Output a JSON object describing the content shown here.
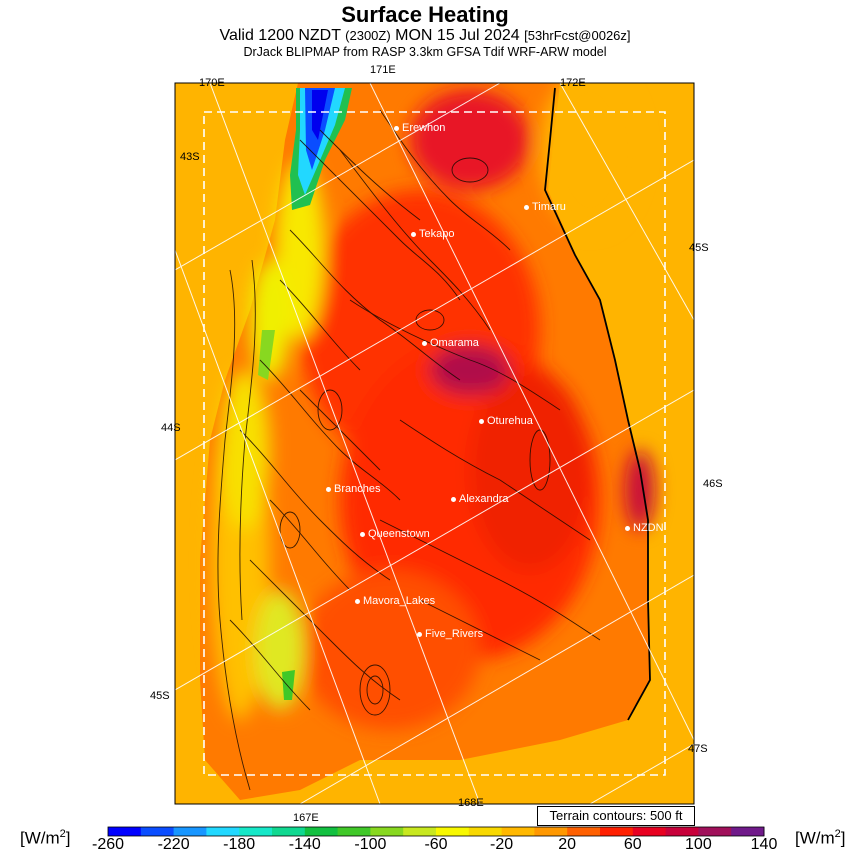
{
  "header": {
    "title": "Surface Heating",
    "valid_prefix": "Valid 1200 NZDT",
    "valid_utc": "(2300Z)",
    "valid_date": "MON 15 Jul 2024",
    "forecast": "[53hrFcst@0026z]",
    "model_line": "DrJack BLIPMAP from RASP 3.3km GFSA Tdif WRF-ARW model"
  },
  "grid_labels": {
    "top": [
      "170E",
      "171E",
      "172E"
    ],
    "left": [
      "43S",
      "44S",
      "45S"
    ],
    "right": [
      "45S",
      "46S",
      "47S"
    ],
    "bottom": [
      "167E",
      "168E"
    ]
  },
  "towns": [
    {
      "name": "Erewhon"
    },
    {
      "name": "Timaru"
    },
    {
      "name": "Tekapo"
    },
    {
      "name": "Omarama"
    },
    {
      "name": "Oturehua"
    },
    {
      "name": "Branches"
    },
    {
      "name": "Alexandra"
    },
    {
      "name": "NZDN"
    },
    {
      "name": "Queenstown"
    },
    {
      "name": "Mavora_Lakes"
    },
    {
      "name": "Five_Rivers"
    }
  ],
  "terrain_note": "Terrain contours: 500 ft",
  "legend": {
    "unit_left": "[W/m",
    "unit_right": "[W/m",
    "unit_sup": "2",
    "unit_close": "]",
    "ticks": [
      "-260",
      "-220",
      "-180",
      "-140",
      "-100",
      "-60",
      "-20",
      "20",
      "60",
      "100",
      "140"
    ],
    "colors": [
      "#0000ff",
      "#0a4dff",
      "#1896ff",
      "#22d8ff",
      "#16e8c8",
      "#10d890",
      "#12c040",
      "#40c828",
      "#88d820",
      "#c8e820",
      "#f8f800",
      "#f8d800",
      "#ffb800",
      "#ff9800",
      "#ff6000",
      "#ff2000",
      "#e80020",
      "#c8003a",
      "#a0105a",
      "#701a8a"
    ]
  }
}
